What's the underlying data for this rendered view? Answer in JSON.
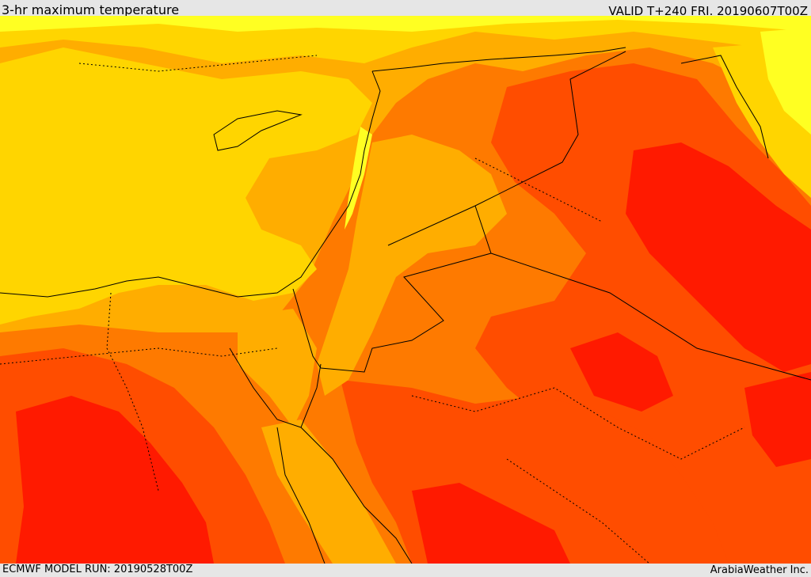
{
  "header": {
    "title": "3-hr maximum temperature",
    "valid": "VALID T+240 FRI. 20190607T00Z"
  },
  "footer": {
    "model_run": "ECMWF MODEL RUN: 20190528T00Z",
    "credit": "ArabiaWeather Inc."
  },
  "colors": {
    "light_yellow": "#ffff22",
    "yellow": "#ffd500",
    "amber": "#ffad00",
    "orange": "#fe7a00",
    "red_orange": "#ff4d00",
    "red": "#ff1a00",
    "border": "#000000"
  }
}
